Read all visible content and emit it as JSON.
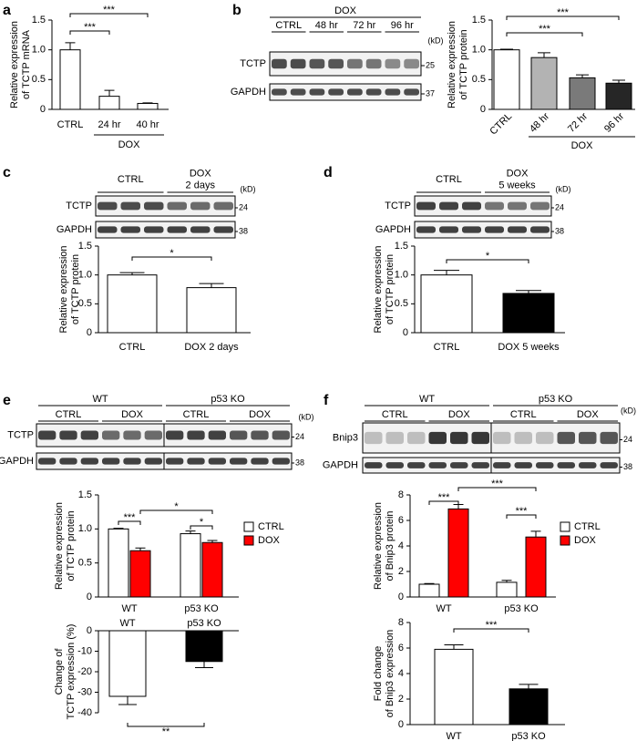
{
  "panel_labels": [
    "a",
    "b",
    "c",
    "d",
    "e",
    "f"
  ],
  "blots": [
    {
      "header": "DOX",
      "lanes": [
        [
          "CTRL"
        ],
        [
          "48 hr"
        ],
        [
          "72 hr"
        ],
        [
          "96 hr"
        ]
      ],
      "unit": "(kD)",
      "rows": [
        {
          "name": "TCTP",
          "marker": 25
        },
        {
          "name": "GAPDH",
          "marker": 37
        }
      ]
    },
    {
      "lanes": [
        [
          "CTRL"
        ],
        [
          "DOX",
          "2 days"
        ]
      ],
      "unit": "(kD)",
      "rows": [
        {
          "name": "TCTP",
          "marker": 24
        },
        {
          "name": "GAPDH",
          "marker": 38
        }
      ]
    },
    {
      "lanes": [
        [
          "CTRL"
        ],
        [
          "DOX",
          "5 weeks"
        ]
      ],
      "unit": "(kD)",
      "rows": [
        {
          "name": "TCTP",
          "marker": 24
        },
        {
          "name": "GAPDH",
          "marker": 38
        }
      ]
    },
    {
      "groups": [
        "WT",
        "p53 KO"
      ],
      "lanes": [
        [
          "CTRL"
        ],
        [
          "DOX"
        ],
        [
          "CTRL"
        ],
        [
          "DOX"
        ]
      ],
      "unit": "(kD)",
      "rows": [
        {
          "name": "TCTP",
          "marker": 24
        },
        {
          "name": "GAPDH",
          "marker": 38
        }
      ]
    },
    {
      "groups": [
        "WT",
        "p53 KO"
      ],
      "lanes": [
        [
          "CTRL"
        ],
        [
          "DOX"
        ],
        [
          "CTRL"
        ],
        [
          "DOX"
        ]
      ],
      "unit": "(kD)",
      "rows": [
        {
          "name": "Bnip3",
          "marker": 24
        },
        {
          "name": "GAPDH",
          "marker": 38
        }
      ]
    }
  ],
  "chart_data": [
    {
      "type": "bar",
      "y_label": [
        "Relative expression",
        "of TCTP mRNA"
      ],
      "categories": [
        "CTRL",
        "24 hr",
        "40 hr"
      ],
      "group_label": "DOX",
      "values": [
        1.0,
        0.22,
        0.1
      ],
      "errors": [
        0.12,
        0.1,
        0.01
      ],
      "colors": [
        "#ffffff",
        "#ffffff",
        "#ffffff"
      ],
      "ylim": [
        0,
        1.5
      ],
      "yticks": [
        0,
        0.5,
        {
          "value": 1,
          "label": "1.0"
        },
        1.5
      ],
      "significance": [
        "***",
        "***"
      ]
    },
    {
      "type": "bar",
      "y_label": [
        "Relative expression",
        "of TCTP protein"
      ],
      "categories": [
        "CTRL",
        "48 hr",
        "72 hr",
        "96 hr"
      ],
      "group_label": "DOX",
      "values": [
        1.0,
        0.87,
        0.53,
        0.44
      ],
      "errors": [
        0.01,
        0.08,
        0.05,
        0.05
      ],
      "colors": [
        "#ffffff",
        "#b3b3b3",
        "#7a7a7a",
        "#262626"
      ],
      "ylim": [
        0,
        1.5
      ],
      "yticks": [
        0,
        0.5,
        {
          "value": 1,
          "label": "1.0"
        },
        1.5
      ],
      "significance": [
        "***",
        "***"
      ]
    },
    {
      "type": "bar",
      "y_label": [
        "Relative expression",
        "of TCTP protein"
      ],
      "categories": [
        "CTRL",
        "DOX 2 days"
      ],
      "values": [
        1.0,
        0.78
      ],
      "errors": [
        0.04,
        0.07
      ],
      "colors": [
        "#ffffff",
        "#ffffff"
      ],
      "ylim": [
        0,
        1.5
      ],
      "yticks": [
        0,
        0.5,
        {
          "value": 1,
          "label": "1.0"
        },
        1.5
      ],
      "significance": [
        "*"
      ]
    },
    {
      "type": "bar",
      "y_label": [
        "Relative expression",
        "of TCTP protein"
      ],
      "categories": [
        "CTRL",
        "DOX 5 weeks"
      ],
      "values": [
        1.0,
        0.68
      ],
      "errors": [
        0.08,
        0.05
      ],
      "colors": [
        "#ffffff",
        "#000000"
      ],
      "ylim": [
        0,
        1.5
      ],
      "yticks": [
        0,
        0.5,
        {
          "value": 1,
          "label": "1.0"
        },
        1.5
      ],
      "significance": [
        "*"
      ]
    },
    {
      "type": "grouped_bar",
      "y_label": [
        "Relative expression",
        "of TCTP protein"
      ],
      "categories": [
        "WT",
        "p53 KO"
      ],
      "series": [
        {
          "name": "CTRL",
          "color": "#ffffff",
          "values": [
            1.0,
            0.93
          ],
          "errors": [
            0.01,
            0.04
          ]
        },
        {
          "name": "DOX",
          "color": "#ff0000",
          "values": [
            0.68,
            0.8
          ],
          "errors": [
            0.04,
            0.03
          ]
        }
      ],
      "ylim": [
        0,
        1.5
      ],
      "yticks": [
        0,
        0.5,
        {
          "value": 1,
          "label": "1.0"
        },
        1.5
      ],
      "significance": [
        "***",
        "*",
        "*"
      ]
    },
    {
      "type": "bar",
      "y_label": [
        "Change of",
        "TCTP expression (%)"
      ],
      "categories": [
        "WT",
        "p53 KO"
      ],
      "values": [
        -32,
        -15
      ],
      "errors": [
        4,
        3
      ],
      "colors": [
        "#ffffff",
        "#000000"
      ],
      "ylim": [
        -40,
        0
      ],
      "yticks": [
        -40,
        -30,
        -20,
        -10,
        0
      ],
      "significance": [
        "**"
      ]
    },
    {
      "type": "grouped_bar",
      "y_label": [
        "Relative expression",
        "of Bnip3 protein"
      ],
      "categories": [
        "WT",
        "p53 KO"
      ],
      "series": [
        {
          "name": "CTRL",
          "color": "#ffffff",
          "values": [
            1.0,
            1.15
          ],
          "errors": [
            0.05,
            0.15
          ]
        },
        {
          "name": "DOX",
          "color": "#ff0000",
          "values": [
            6.9,
            4.7
          ],
          "errors": [
            0.35,
            0.45
          ]
        }
      ],
      "ylim": [
        0,
        8
      ],
      "yticks": [
        0,
        2,
        4,
        6,
        8
      ],
      "significance": [
        "***",
        "***",
        "***"
      ]
    },
    {
      "type": "bar",
      "y_label": [
        "Fold change",
        "of Bnip3 expression"
      ],
      "categories": [
        "WT",
        "p53 KO"
      ],
      "values": [
        5.9,
        2.8
      ],
      "errors": [
        0.35,
        0.35
      ],
      "colors": [
        "#ffffff",
        "#000000"
      ],
      "ylim": [
        0,
        8
      ],
      "yticks": [
        0,
        2,
        4,
        6,
        8
      ],
      "significance": [
        "***"
      ]
    }
  ]
}
